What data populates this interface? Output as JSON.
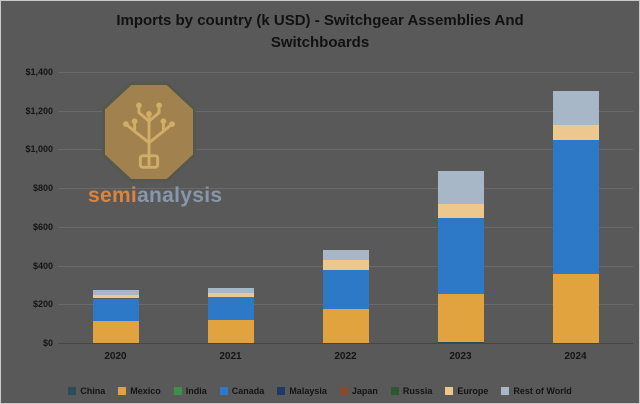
{
  "header": {
    "title_line1": "Imports by country (k USD) - Switchgear Assemblies And",
    "title_line2": "Switchboards"
  },
  "logo": {
    "brand_semi": "semi",
    "brand_analysis": "analysis"
  },
  "chart_data": {
    "type": "bar",
    "stacked": true,
    "title": "Imports by country (k USD) - Switchgear Assemblies And Switchboards",
    "xlabel": "",
    "ylabel": "",
    "categories": [
      "2020",
      "2021",
      "2022",
      "2023",
      "2024"
    ],
    "series": [
      {
        "name": "China",
        "color": "#2a4a5e",
        "values": [
          0,
          0,
          0,
          5,
          0
        ]
      },
      {
        "name": "Mexico",
        "color": "#e0a33e",
        "values": [
          115,
          120,
          178,
          248,
          358
        ]
      },
      {
        "name": "India",
        "color": "#3f8f4a",
        "values": [
          0,
          0,
          0,
          0,
          0
        ]
      },
      {
        "name": "Canada",
        "color": "#2e79c7",
        "values": [
          115,
          120,
          200,
          395,
          690
        ]
      },
      {
        "name": "Malaysia",
        "color": "#1f3864",
        "values": [
          0,
          0,
          0,
          0,
          0
        ]
      },
      {
        "name": "Japan",
        "color": "#8b4a2f",
        "values": [
          0,
          0,
          0,
          0,
          0
        ]
      },
      {
        "name": "Russia",
        "color": "#2f5632",
        "values": [
          0,
          0,
          0,
          0,
          0
        ]
      },
      {
        "name": "Europe",
        "color": "#ecc78e",
        "values": [
          20,
          20,
          50,
          72,
          80
        ]
      },
      {
        "name": "Rest of World",
        "color": "#a8b7c7",
        "values": [
          22,
          25,
          52,
          170,
          172
        ]
      }
    ],
    "totals": [
      272,
      285,
      480,
      890,
      1300
    ],
    "ylim": [
      0,
      1400
    ],
    "ytick_step": 200,
    "ytick_labels": [
      "$0",
      "$200",
      "$400",
      "$600",
      "$800",
      "$1,000",
      "$1,200",
      "$1,400"
    ],
    "grid": true,
    "legend_position": "bottom"
  }
}
